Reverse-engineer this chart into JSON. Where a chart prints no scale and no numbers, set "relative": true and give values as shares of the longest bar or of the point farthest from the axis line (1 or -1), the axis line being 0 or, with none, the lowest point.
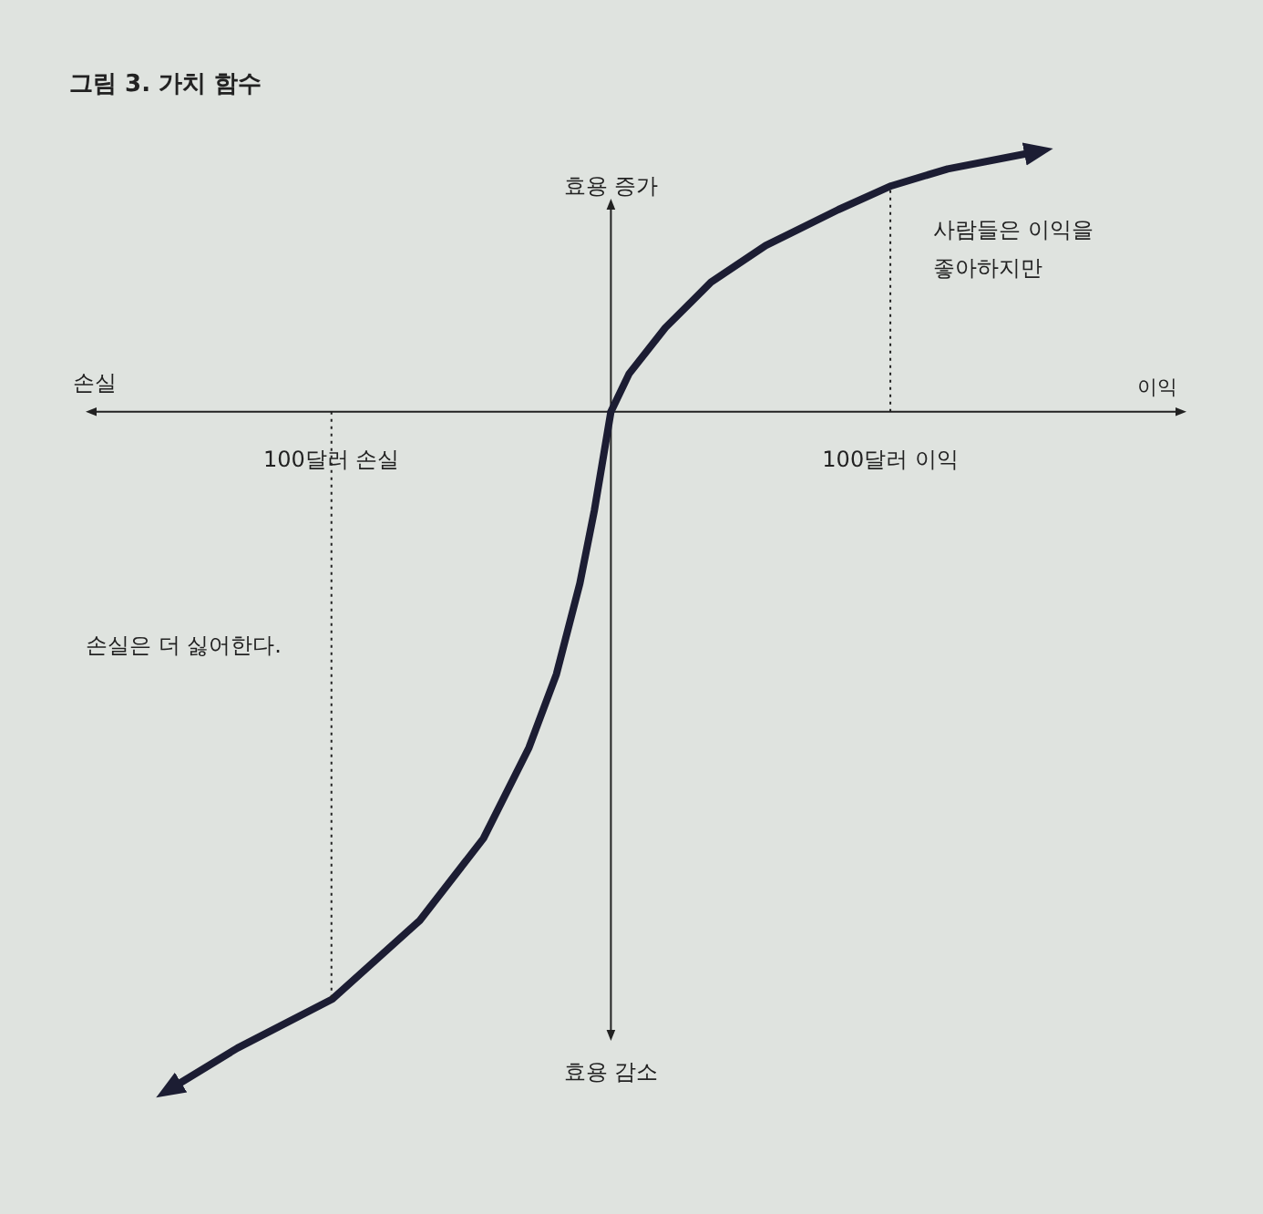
{
  "chart_data": {
    "type": "line",
    "title": "그림 3. 가치 함수",
    "xlabel": "이익",
    "ylabel": "효용 증가",
    "relative": true,
    "tick_labels": "x",
    "xlim": [
      -186,
      204
    ],
    "xticks": [
      {
        "value": -100,
        "label": "100달러 손실"
      },
      {
        "value": 100,
        "label": "100달러 이익"
      }
    ],
    "x": [
      -158.3,
      -133.6,
      -99.7,
      -68.4,
      -45.6,
      -29.3,
      -19.5,
      -11.1,
      -5.9,
      0,
      6.5,
      19.5,
      35.8,
      55.4,
      81.4,
      100.3,
      120.5,
      153.1
    ],
    "series": [
      {
        "color": "#1c1d33",
        "values": [
          -1,
          -0.938,
          -0.866,
          -0.75,
          -0.629,
          -0.495,
          -0.387,
          -0.253,
          -0.145,
          0,
          0.056,
          0.124,
          0.191,
          0.245,
          0.298,
          0.333,
          0.358,
          0.384
        ]
      }
    ],
    "ref_lines": [
      {
        "axis": "x",
        "value": -100,
        "line_style": "dotted"
      },
      {
        "axis": "x",
        "value": 100,
        "line_style": "dotted"
      }
    ],
    "annotations": [
      "손실",
      "효용 감소",
      "사람들은 이익을 좋아하지만",
      "손실은 더 싫어한다."
    ]
  }
}
